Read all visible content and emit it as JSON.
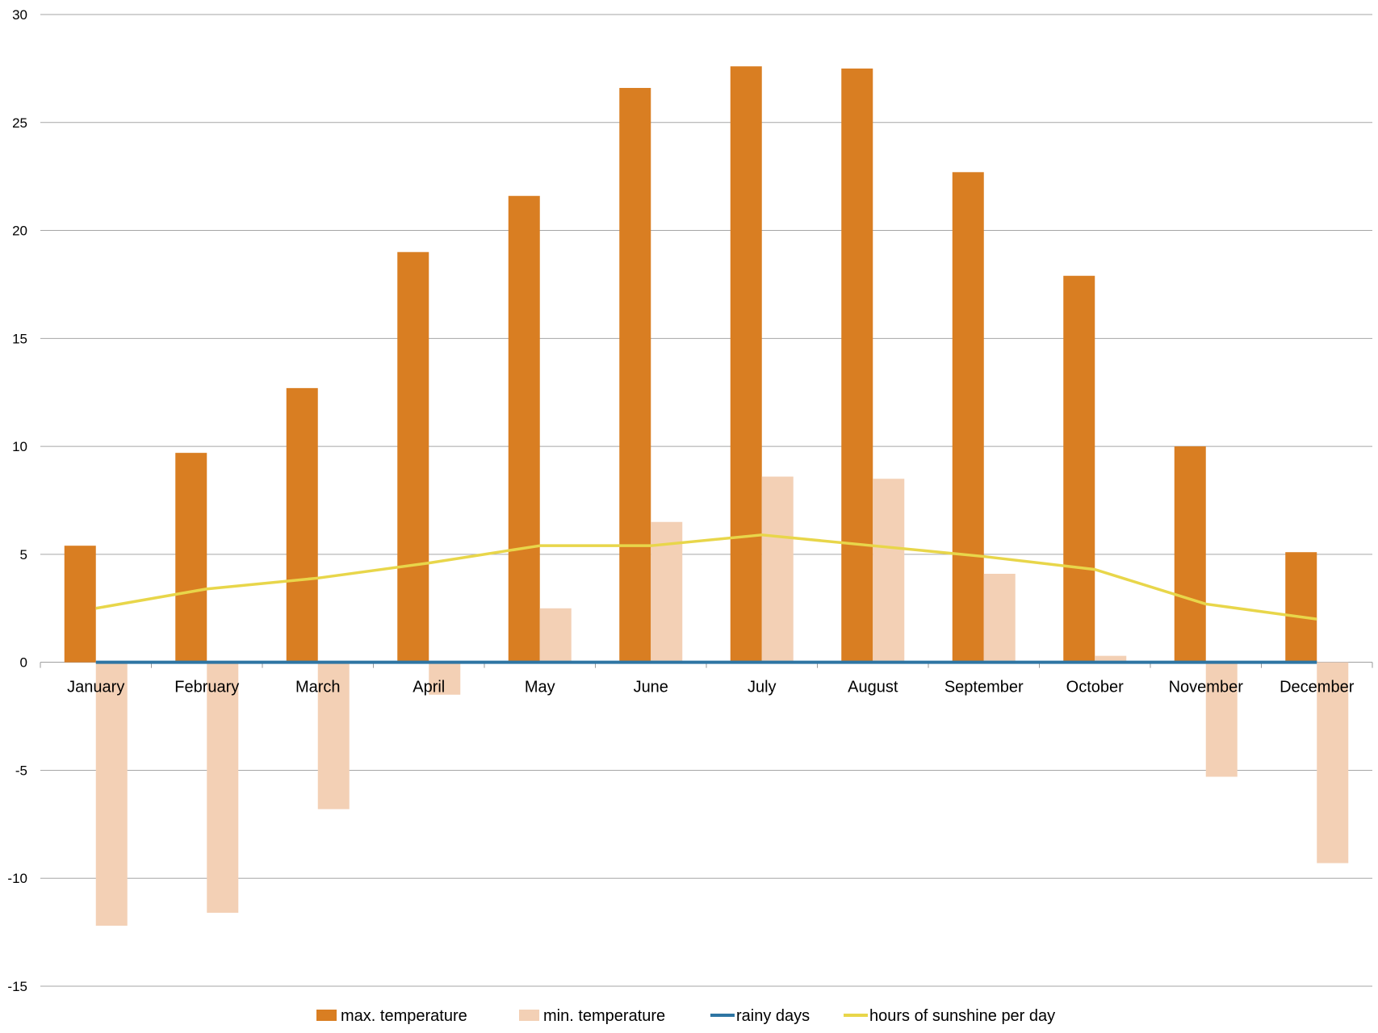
{
  "chart_data": {
    "type": "bar",
    "categories": [
      "January",
      "February",
      "March",
      "April",
      "May",
      "June",
      "July",
      "August",
      "September",
      "October",
      "November",
      "December"
    ],
    "series": [
      {
        "name": "max.  temperature",
        "type": "bar",
        "color": "#d97e22",
        "values": [
          5.4,
          9.7,
          12.7,
          19.0,
          21.6,
          26.6,
          27.6,
          27.5,
          22.7,
          17.9,
          10.0,
          5.1
        ]
      },
      {
        "name": "min. temperature",
        "type": "bar",
        "color": "#f3d0b5",
        "values": [
          -12.2,
          -11.6,
          -6.8,
          -1.5,
          2.5,
          6.5,
          8.6,
          8.5,
          4.1,
          0.3,
          -5.3,
          -9.3
        ]
      },
      {
        "name": "rainy days",
        "type": "line",
        "color": "#2e75a3",
        "values": [
          0,
          0,
          0,
          0,
          0,
          0,
          0,
          0,
          0,
          0,
          0,
          0
        ]
      },
      {
        "name": "hours of sunshine per day",
        "type": "line",
        "color": "#e8d64a",
        "values": [
          2.5,
          3.4,
          3.9,
          4.6,
          5.4,
          5.4,
          5.9,
          5.4,
          4.9,
          4.3,
          2.7,
          2.0
        ]
      }
    ],
    "ylim": [
      -15,
      30
    ],
    "yticks": [
      30,
      25,
      20,
      15,
      10,
      5,
      0,
      -5,
      -10,
      -15
    ],
    "grid": true,
    "legend_position": "bottom"
  }
}
